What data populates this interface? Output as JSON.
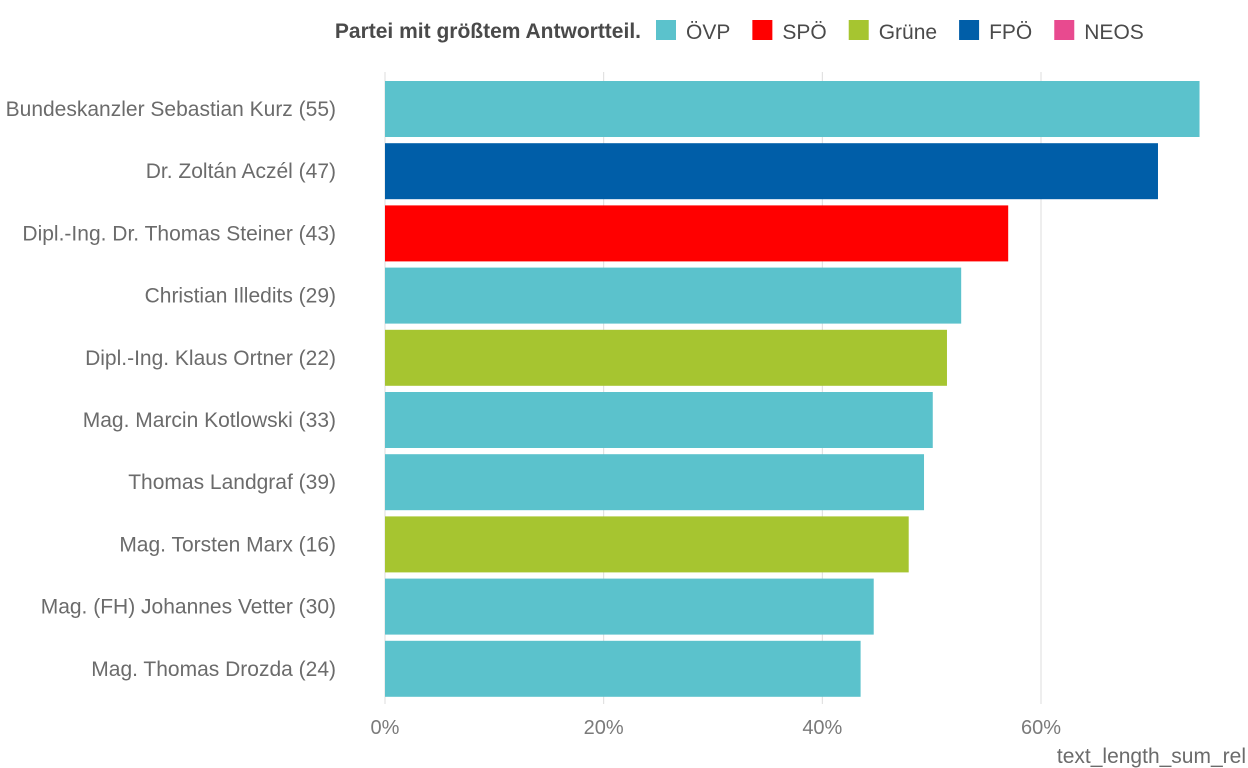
{
  "chart_data": {
    "type": "bar",
    "orientation": "horizontal",
    "categories": [
      "Bundeskanzler Sebastian Kurz (55)",
      "Dr. Zoltán Aczél (47)",
      "Dipl.-Ing. Dr. Thomas Steiner (43)",
      "Christian Illedits (29)",
      "Dipl.-Ing. Klaus Ortner (22)",
      "Mag. Marcin Kotlowski (33)",
      "Thomas Landgraf (39)",
      "Mag. Torsten Marx (16)",
      "Mag. (FH) Johannes Vetter (30)",
      "Mag. Thomas Drozda (24)"
    ],
    "values": [
      0.745,
      0.707,
      0.57,
      0.527,
      0.514,
      0.501,
      0.493,
      0.479,
      0.447,
      0.435
    ],
    "party": [
      "ÖVP",
      "FPÖ",
      "SPÖ",
      "ÖVP",
      "Grüne",
      "ÖVP",
      "ÖVP",
      "Grüne",
      "ÖVP",
      "ÖVP"
    ],
    "xlabel": "text_length_sum_rel",
    "ylabel": "",
    "xlim": [
      0,
      0.75
    ],
    "xticks": [
      0,
      0.2,
      0.4,
      0.6
    ],
    "xtick_labels": [
      "0%",
      "20%",
      "40%",
      "60%"
    ],
    "grid": true,
    "legend": {
      "title": "Partei mit größtem Antwortteil.",
      "placement": "top",
      "entries": [
        {
          "name": "ÖVP",
          "color": "#5bc2cc"
        },
        {
          "name": "SPÖ",
          "color": "#ff0000"
        },
        {
          "name": "Grüne",
          "color": "#a6c530"
        },
        {
          "name": "FPÖ",
          "color": "#005ea8"
        },
        {
          "name": "NEOS",
          "color": "#e84a8f"
        }
      ]
    }
  }
}
